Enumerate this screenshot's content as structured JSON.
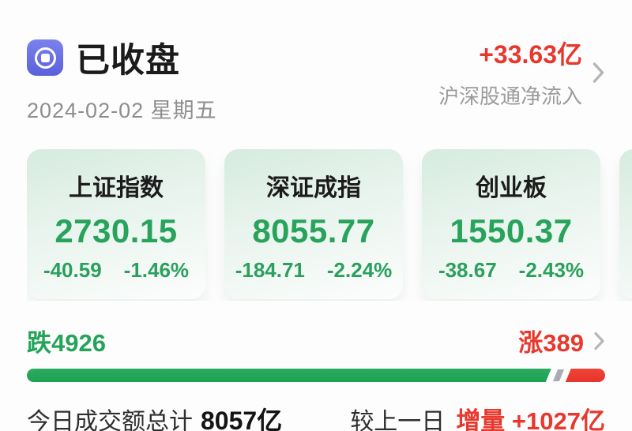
{
  "header": {
    "status": "已收盘",
    "date": "2024-02-02 星期五"
  },
  "northbound": {
    "value": "+33.63亿",
    "label": "沪深股通净流入"
  },
  "indices": [
    {
      "name": "上证指数",
      "value": "2730.15",
      "change": "-40.59",
      "change_pct": "-1.46%"
    },
    {
      "name": "深证成指",
      "value": "8055.77",
      "change": "-184.71",
      "change_pct": "-2.24%"
    },
    {
      "name": "创业板",
      "value": "1550.37",
      "change": "-38.67",
      "change_pct": "-2.43%"
    }
  ],
  "breadth": {
    "down_label": "跌4926",
    "up_label": "涨389",
    "down_count": 4926,
    "up_count": 389
  },
  "turnover": {
    "label": "今日成交额总计",
    "value": "8057亿",
    "compare_label": "较上一日",
    "compare_value": "增量 +1027亿"
  },
  "colors": {
    "green": "#28a35b",
    "red": "#e8382d",
    "icon_purple": "#6b70e4",
    "card_gradient_top": "#d6ebdf",
    "gray_text": "#8d8d8d"
  }
}
